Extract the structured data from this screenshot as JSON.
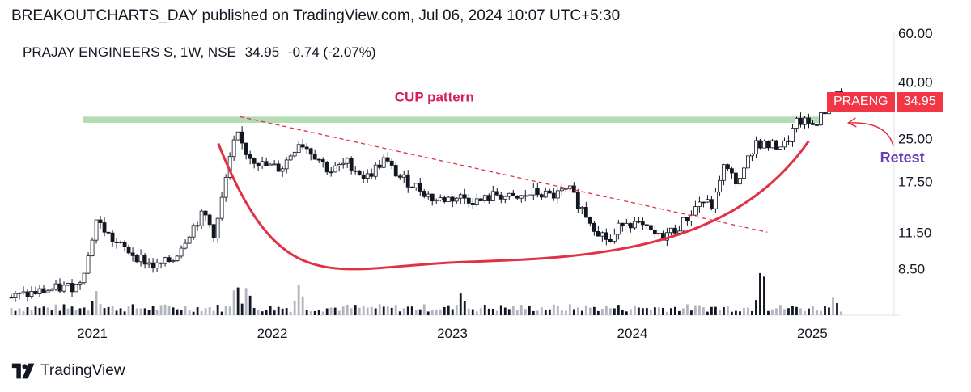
{
  "header": {
    "published": "BREAKOUTCHARTS_DAY published on TradingView.com, Jul 06, 2024 10:07 UTC+5:30"
  },
  "legend": {
    "symbol": "PRAJAY ENGINEERS S, 1W, NSE",
    "last": "34.95",
    "change": "-0.74 (-2.07%)"
  },
  "badge": {
    "symbol": "PRAENG",
    "price": "34.95"
  },
  "brand": {
    "name": "TradingView",
    "logo_icon": "tradingview-logo-icon"
  },
  "colors": {
    "up": "#131722",
    "down": "#131722",
    "pattern": "#e23144",
    "zone": "#a5d6a7",
    "label": "#d81b60",
    "retest": "#673ab7",
    "badge": "#f23645"
  },
  "chart_data": {
    "type": "candlestick",
    "scale": "log",
    "ylim": [
      6.3,
      60
    ],
    "xlim": [
      "2020-07",
      "2025-05"
    ],
    "y_ticks": [
      "60.00",
      "40.00",
      "25.00",
      "17.50",
      "11.50",
      "8.50"
    ],
    "x_ticks": [
      {
        "label": "2021",
        "t": 2021.0
      },
      {
        "label": "2022",
        "t": 2022.0
      },
      {
        "label": "2023",
        "t": 2023.0
      },
      {
        "label": "2024",
        "t": 2024.0
      },
      {
        "label": "2025",
        "t": 2025.0
      }
    ],
    "price_path": [
      [
        2020.55,
        6.7
      ],
      [
        2020.75,
        7.1
      ],
      [
        2020.92,
        7.4
      ],
      [
        2020.98,
        9.5
      ],
      [
        2021.02,
        12.8
      ],
      [
        2021.12,
        10.6
      ],
      [
        2021.25,
        9.4
      ],
      [
        2021.35,
        8.6
      ],
      [
        2021.45,
        9.2
      ],
      [
        2021.55,
        11.8
      ],
      [
        2021.62,
        13.5
      ],
      [
        2021.68,
        11.2
      ],
      [
        2021.75,
        19.0
      ],
      [
        2021.8,
        26.0
      ],
      [
        2021.86,
        22.0
      ],
      [
        2021.95,
        20.0
      ],
      [
        2022.05,
        19.5
      ],
      [
        2022.15,
        24.5
      ],
      [
        2022.25,
        21.5
      ],
      [
        2022.32,
        19.0
      ],
      [
        2022.42,
        20.5
      ],
      [
        2022.52,
        18.0
      ],
      [
        2022.62,
        21.0
      ],
      [
        2022.7,
        18.3
      ],
      [
        2022.82,
        16.5
      ],
      [
        2022.9,
        15.0
      ],
      [
        2023.05,
        15.4
      ],
      [
        2023.15,
        14.8
      ],
      [
        2023.25,
        15.8
      ],
      [
        2023.35,
        15.0
      ],
      [
        2023.45,
        16.0
      ],
      [
        2023.55,
        15.5
      ],
      [
        2023.65,
        16.3
      ],
      [
        2023.72,
        14.0
      ],
      [
        2023.8,
        11.8
      ],
      [
        2023.88,
        10.6
      ],
      [
        2023.95,
        12.8
      ],
      [
        2024.05,
        12.0
      ],
      [
        2024.15,
        11.0
      ],
      [
        2024.25,
        11.9
      ],
      [
        2024.3,
        12.8
      ],
      [
        2024.38,
        15.0
      ],
      [
        2024.45,
        14.2
      ],
      [
        2024.5,
        20.0
      ],
      [
        2024.58,
        17.5
      ],
      [
        2024.62,
        19.0
      ],
      [
        2024.68,
        24.5
      ],
      [
        2024.75,
        23.5
      ],
      [
        2024.85,
        23.8
      ],
      [
        2024.92,
        29.0
      ],
      [
        2025.0,
        28.0
      ],
      [
        2025.06,
        30.5
      ],
      [
        2025.12,
        37.5
      ],
      [
        2025.16,
        34.95
      ]
    ],
    "volume_spikes": [
      {
        "t": 2021.02,
        "v": 0.45
      },
      {
        "t": 2021.8,
        "v": 0.62
      },
      {
        "t": 2021.86,
        "v": 0.55
      },
      {
        "t": 2022.15,
        "v": 0.58
      },
      {
        "t": 2023.05,
        "v": 0.42
      },
      {
        "t": 2024.72,
        "v": 0.95
      },
      {
        "t": 2025.12,
        "v": 0.35
      }
    ],
    "annotations": [
      {
        "type": "zone",
        "label": "",
        "y": [
          28.5,
          30.0
        ],
        "t": [
          2020.95,
          2025.05
        ]
      },
      {
        "type": "text",
        "label": "CUP pattern",
        "t": 2022.9,
        "y": 34.0
      },
      {
        "type": "trendline",
        "style": "dashed",
        "from": [
          2021.82,
          30.0
        ],
        "to": [
          2024.75,
          11.5
        ]
      },
      {
        "type": "arc",
        "label": "",
        "from": [
          2021.7,
          24.0
        ],
        "bottom": [
          2023.1,
          9.0
        ],
        "to": [
          2024.98,
          24.5
        ]
      },
      {
        "type": "text",
        "label": "Retest",
        "t": 2025.5,
        "y": 20.5
      },
      {
        "type": "arrow",
        "from": [
          2025.45,
          23.5
        ],
        "to": [
          2025.2,
          28.5
        ]
      }
    ]
  }
}
